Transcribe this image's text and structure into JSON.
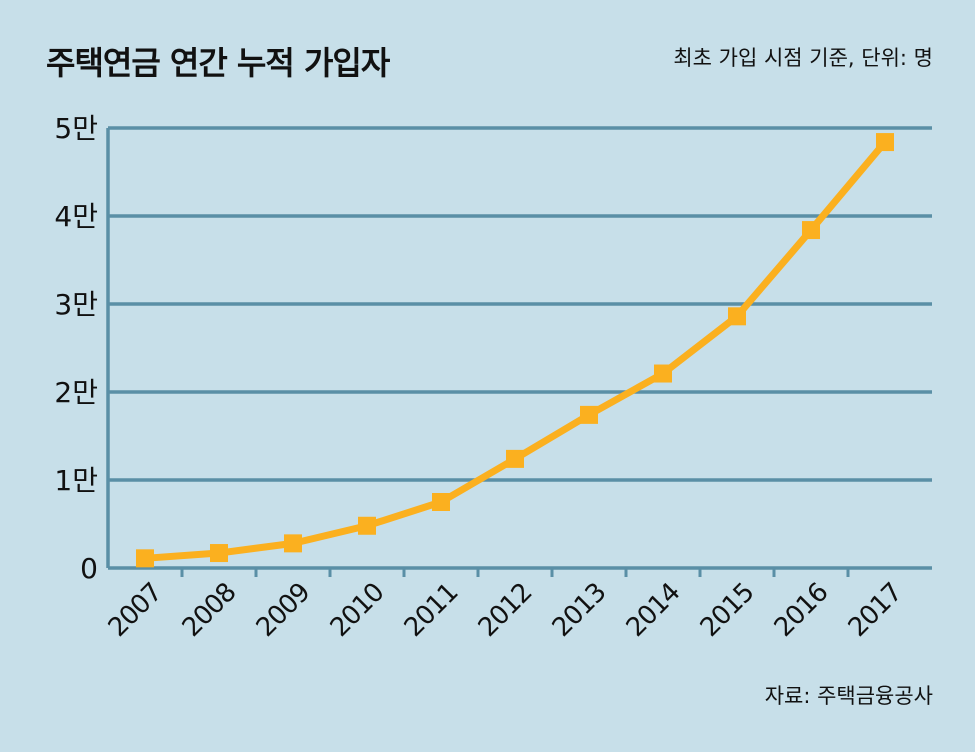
{
  "header": {
    "title": "주택연금 연간 누적 가입자",
    "note": "최초 가입 시점 기준, 단위: 명"
  },
  "footer": {
    "source": "자료: 주택금융공사"
  },
  "colors": {
    "background": "#c7dfe9",
    "gridline": "#5a8fa6",
    "line": "#fbb01f"
  },
  "chart_data": {
    "type": "line",
    "title": "주택연금 연간 누적 가입자",
    "xlabel": "",
    "ylabel": "",
    "x": [
      "2007",
      "2008",
      "2009",
      "2010",
      "2011",
      "2012",
      "2013",
      "2014",
      "2015",
      "2016",
      "2017"
    ],
    "series": [
      {
        "name": "",
        "values": [
          1100,
          1700,
          2800,
          4800,
          7500,
          12400,
          17400,
          22100,
          28600,
          38400,
          48400
        ]
      }
    ],
    "ylim": [
      0,
      50000
    ],
    "yticks": [
      0,
      10000,
      20000,
      30000,
      40000,
      50000
    ],
    "ytick_labels": [
      "0",
      "1만",
      "2만",
      "3만",
      "4만",
      "5만"
    ],
    "grid": true,
    "legend": "none"
  }
}
